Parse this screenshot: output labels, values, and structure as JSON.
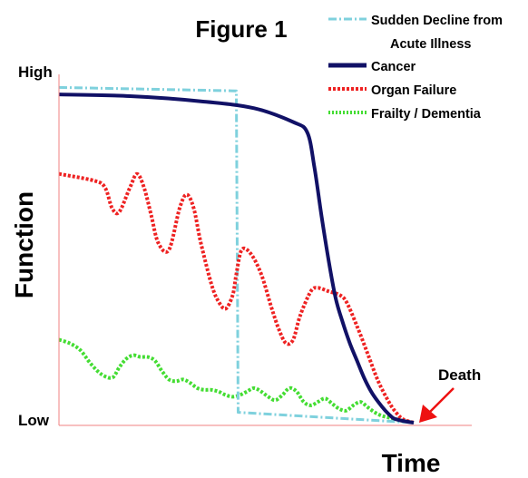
{
  "chart_data": {
    "type": "line",
    "title": "Figure 1",
    "xlabel": "Time",
    "ylabel": "Function",
    "y_tick_labels": [
      "High",
      "Low"
    ],
    "annotation": "Death",
    "legend_position": "top-right",
    "grid": false,
    "xlim": [
      0,
      100
    ],
    "ylim": [
      0,
      100
    ],
    "series": [
      {
        "name": "Sudden Decline from Acute Illness",
        "style": "dash-dot",
        "color": "#7FD1DD",
        "x": [
          0,
          50,
          50.5,
          100
        ],
        "y": [
          97,
          96,
          3,
          0
        ]
      },
      {
        "name": "Cancer",
        "style": "solid",
        "color": "#111166",
        "x": [
          0,
          20,
          40,
          55,
          66,
          70,
          72,
          74,
          76,
          78,
          80,
          82,
          84,
          86,
          88,
          90,
          92,
          94,
          95,
          97,
          100
        ],
        "y": [
          95,
          94.5,
          93,
          91,
          87,
          84,
          74,
          60,
          47,
          36,
          29,
          23,
          18,
          13,
          9,
          6,
          3.5,
          1.5,
          1,
          0.5,
          0
        ]
      },
      {
        "name": "Organ Failure",
        "style": "dotted",
        "color": "#EE2222",
        "x": [
          0,
          10,
          13,
          15,
          17,
          20,
          22,
          24,
          26,
          28,
          31,
          34,
          36,
          38,
          40,
          43,
          45,
          47,
          49,
          50,
          51.5,
          54,
          57,
          60,
          62,
          64,
          66,
          68,
          71,
          73,
          76,
          79,
          81,
          84,
          87,
          90,
          93,
          95,
          97,
          100
        ],
        "y": [
          72,
          70,
          68,
          62,
          61,
          68,
          72,
          68,
          60,
          52,
          50,
          62,
          66,
          62,
          52,
          40,
          35,
          33,
          37,
          43,
          50,
          49,
          43,
          33,
          27,
          23,
          24,
          31,
          38,
          39,
          38,
          37,
          35,
          28,
          20,
          12,
          6,
          3,
          1,
          0
        ]
      },
      {
        "name": "Frailty / Dementia",
        "style": "dotted",
        "color": "#44DD33",
        "x": [
          0,
          3,
          6,
          9,
          12,
          15,
          17,
          19,
          21,
          23,
          25,
          27,
          29,
          31,
          33,
          35,
          37,
          39,
          41,
          43,
          45,
          47,
          49,
          51,
          53,
          55,
          57,
          59,
          61,
          63,
          65,
          67,
          69,
          71,
          73,
          75,
          77,
          79,
          81,
          83,
          85,
          87,
          89,
          91,
          93,
          95,
          97,
          100
        ],
        "y": [
          24,
          23,
          21,
          17,
          14,
          13,
          16,
          18.5,
          19.5,
          19,
          19,
          18,
          15,
          12.5,
          12,
          12.5,
          11.5,
          10,
          9.5,
          9.5,
          9,
          8,
          7.5,
          8,
          9,
          10,
          9,
          7.5,
          6.5,
          8,
          10,
          9,
          6,
          5,
          6,
          7,
          5.5,
          4,
          3.5,
          5,
          6,
          4.5,
          3,
          2,
          1.5,
          1,
          0.5,
          0
        ]
      }
    ]
  }
}
